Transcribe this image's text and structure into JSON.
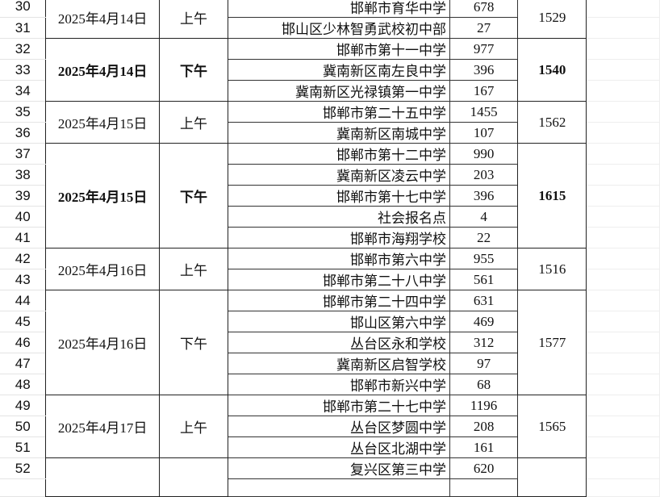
{
  "groups": [
    {
      "date": "2025年4月14日",
      "period": "上午",
      "total": "1529",
      "bold": false,
      "rows": [
        {
          "num": "30",
          "school": "邯郸市育华中学",
          "count": "678"
        },
        {
          "num": "31",
          "school": "邯山区少林智勇武校初中部",
          "count": "27"
        }
      ]
    },
    {
      "date": "2025年4月14日",
      "period": "下午",
      "total": "1540",
      "bold": true,
      "rows": [
        {
          "num": "32",
          "school": "邯郸市第十一中学",
          "count": "977"
        },
        {
          "num": "33",
          "school": "冀南新区南左良中学",
          "count": "396"
        },
        {
          "num": "34",
          "school": "冀南新区光禄镇第一中学",
          "count": "167"
        }
      ]
    },
    {
      "date": "2025年4月15日",
      "period": "上午",
      "total": "1562",
      "bold": false,
      "rows": [
        {
          "num": "35",
          "school": "邯郸市第二十五中学",
          "count": "1455"
        },
        {
          "num": "36",
          "school": "冀南新区南城中学",
          "count": "107"
        }
      ]
    },
    {
      "date": "2025年4月15日",
      "period": "下午",
      "total": "1615",
      "bold": true,
      "rows": [
        {
          "num": "37",
          "school": "邯郸市第十二中学",
          "count": "990"
        },
        {
          "num": "38",
          "school": "冀南新区凌云中学",
          "count": "203"
        },
        {
          "num": "39",
          "school": "邯郸市第十七中学",
          "count": "396"
        },
        {
          "num": "40",
          "school": "社会报名点",
          "count": "4"
        },
        {
          "num": "41",
          "school": "邯郸市海翔学校",
          "count": "22"
        }
      ]
    },
    {
      "date": "2025年4月16日",
      "period": "上午",
      "total": "1516",
      "bold": false,
      "rows": [
        {
          "num": "42",
          "school": "邯郸市第六中学",
          "count": "955"
        },
        {
          "num": "43",
          "school": "邯郸市第二十八中学",
          "count": "561"
        }
      ]
    },
    {
      "date": "2025年4月16日",
      "period": "下午",
      "total": "1577",
      "bold": false,
      "rows": [
        {
          "num": "44",
          "school": "邯郸市第二十四中学",
          "count": "631"
        },
        {
          "num": "45",
          "school": "邯山区第六中学",
          "count": "469"
        },
        {
          "num": "46",
          "school": "丛台区永和学校",
          "count": "312"
        },
        {
          "num": "47",
          "school": "冀南新区启智学校",
          "count": "97"
        },
        {
          "num": "48",
          "school": "邯郸市新兴中学",
          "count": "68"
        }
      ]
    },
    {
      "date": "2025年4月17日",
      "period": "上午",
      "total": "1565",
      "bold": false,
      "rows": [
        {
          "num": "49",
          "school": "邯郸市第二十七中学",
          "count": "1196"
        },
        {
          "num": "50",
          "school": "丛台区梦圆中学",
          "count": "208"
        },
        {
          "num": "51",
          "school": "丛台区北湖中学",
          "count": "161"
        }
      ]
    },
    {
      "date": "",
      "period": "",
      "total": "",
      "bold": false,
      "rows": [
        {
          "num": "52",
          "school": "复兴区第三中学",
          "count": "620"
        },
        {
          "num": "",
          "school": "",
          "count": ""
        }
      ]
    }
  ]
}
